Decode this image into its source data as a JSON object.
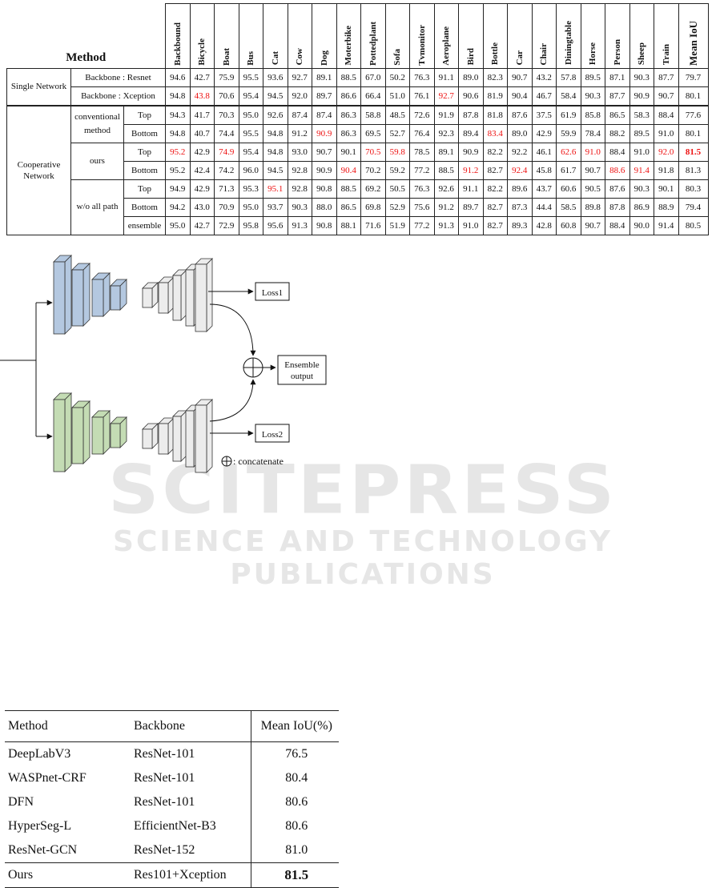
{
  "watermark": {
    "brand": "SCITEPRESS",
    "tagline": "SCIENCE AND TECHNOLOGY PUBLICATIONS"
  },
  "table1": {
    "method_header": "Method",
    "columns": [
      "Backbound",
      "Bicycle",
      "Boat",
      "Bus",
      "Cat",
      "Cow",
      "Dog",
      "Moterbike",
      "Pottedplant",
      "Sofa",
      "Tvmonitor",
      "Aeroplane",
      "Bird",
      "Bottle",
      "Car",
      "Chair",
      "Diningtable",
      "Horse",
      "Person",
      "Sheep",
      "Train",
      "Mean IoU"
    ],
    "highlight_color": "#e11111",
    "groups": {
      "single": "Single Network",
      "cooperative": "Cooperative Network",
      "conventional": "conventional method",
      "ours": "ours",
      "wo": "w/o all path"
    },
    "rows": [
      {
        "label": "Backbone : Resnet",
        "values": [
          "94.6",
          "42.7",
          "75.9",
          "95.5",
          "93.6",
          "92.7",
          "89.1",
          "88.5",
          "67.0",
          "50.2",
          "76.3",
          "91.1",
          "89.0",
          "82.3",
          "90.7",
          "43.2",
          "57.8",
          "89.5",
          "87.1",
          "90.3",
          "87.7",
          "79.7"
        ]
      },
      {
        "label": "Backbone : Xception",
        "values": [
          "94.8",
          "43.8",
          "70.6",
          "95.4",
          "94.5",
          "92.0",
          "89.7",
          "86.6",
          "66.4",
          "51.0",
          "76.1",
          "92.7",
          "90.6",
          "81.9",
          "90.4",
          "46.7",
          "58.4",
          "90.3",
          "87.7",
          "90.9",
          "90.7",
          "80.1"
        ]
      },
      {
        "label": "Top",
        "values": [
          "94.3",
          "41.7",
          "70.3",
          "95.0",
          "92.6",
          "87.4",
          "87.4",
          "86.3",
          "58.8",
          "48.5",
          "72.6",
          "91.9",
          "87.8",
          "81.8",
          "87.6",
          "37.5",
          "61.9",
          "85.8",
          "86.5",
          "58.3",
          "88.4",
          "77.6"
        ]
      },
      {
        "label": "Bottom",
        "values": [
          "94.8",
          "40.7",
          "74.4",
          "95.5",
          "94.8",
          "91.2",
          "90.9",
          "86.3",
          "69.5",
          "52.7",
          "76.4",
          "92.3",
          "89.4",
          "83.4",
          "89.0",
          "42.9",
          "59.9",
          "78.4",
          "88.2",
          "89.5",
          "91.0",
          "80.1"
        ]
      },
      {
        "label": "Top",
        "values": [
          "95.2",
          "42.9",
          "74.9",
          "95.4",
          "94.8",
          "93.0",
          "90.7",
          "90.1",
          "70.5",
          "59.8",
          "78.5",
          "89.1",
          "90.9",
          "82.2",
          "92.2",
          "46.1",
          "62.6",
          "91.0",
          "88.4",
          "91.0",
          "92.0",
          "81.5"
        ]
      },
      {
        "label": "Bottom",
        "values": [
          "95.2",
          "42.4",
          "74.2",
          "96.0",
          "94.5",
          "92.8",
          "90.9",
          "90.4",
          "70.2",
          "59.2",
          "77.2",
          "88.5",
          "91.2",
          "82.7",
          "92.4",
          "45.8",
          "61.7",
          "90.7",
          "88.6",
          "91.4",
          "91.8",
          "81.3"
        ]
      },
      {
        "label": "Top",
        "values": [
          "94.9",
          "42.9",
          "71.3",
          "95.3",
          "95.1",
          "92.8",
          "90.8",
          "88.5",
          "69.2",
          "50.5",
          "76.3",
          "92.6",
          "91.1",
          "82.2",
          "89.6",
          "43.7",
          "60.6",
          "90.5",
          "87.6",
          "90.3",
          "90.1",
          "80.3"
        ]
      },
      {
        "label": "Bottom",
        "values": [
          "94.2",
          "43.0",
          "70.9",
          "95.0",
          "93.7",
          "90.3",
          "88.0",
          "86.5",
          "69.8",
          "52.9",
          "75.6",
          "91.2",
          "89.7",
          "82.7",
          "87.3",
          "44.4",
          "58.5",
          "89.8",
          "87.8",
          "86.9",
          "88.9",
          "79.4"
        ]
      },
      {
        "label": "ensemble",
        "values": [
          "95.0",
          "42.7",
          "72.9",
          "95.8",
          "95.6",
          "91.3",
          "90.8",
          "88.1",
          "71.6",
          "51.9",
          "77.2",
          "91.3",
          "91.0",
          "82.7",
          "89.3",
          "42.8",
          "60.8",
          "90.7",
          "88.4",
          "90.0",
          "91.4",
          "80.5"
        ]
      }
    ],
    "red_cells": [
      [
        1,
        1
      ],
      [
        1,
        11
      ],
      [
        3,
        6
      ],
      [
        3,
        13
      ],
      [
        4,
        0
      ],
      [
        4,
        2
      ],
      [
        4,
        8
      ],
      [
        4,
        9
      ],
      [
        4,
        16
      ],
      [
        4,
        17
      ],
      [
        4,
        20
      ],
      [
        5,
        7
      ],
      [
        5,
        12
      ],
      [
        5,
        14
      ],
      [
        5,
        18
      ],
      [
        5,
        19
      ],
      [
        6,
        4
      ]
    ],
    "best_cell": [
      4,
      21
    ]
  },
  "diagram": {
    "loss1": "Loss1",
    "loss2": "Loss2",
    "ensemble_line1": "Ensemble",
    "ensemble_line2": "output",
    "legend": ": concatenate",
    "top_color": "#b4c8e0",
    "bottom_color": "#c4dcb4",
    "decoder_color": "#ececec"
  },
  "table2": {
    "headers": [
      "Method",
      "Backbone",
      "Mean IoU(%)"
    ],
    "rows": [
      {
        "method": "DeepLabV3",
        "backbone": "ResNet-101",
        "miou": "76.5"
      },
      {
        "method": "WASPnet-CRF",
        "backbone": "ResNet-101",
        "miou": "80.4"
      },
      {
        "method": "DFN",
        "backbone": "ResNet-101",
        "miou": "80.6"
      },
      {
        "method": "HyperSeg-L",
        "backbone": "EfficientNet-B3",
        "miou": "80.6"
      },
      {
        "method": "ResNet-GCN",
        "backbone": "ResNet-152",
        "miou": "81.0"
      },
      {
        "method": "Ours",
        "backbone": "Res101+Xception",
        "miou": "81.5"
      }
    ]
  }
}
